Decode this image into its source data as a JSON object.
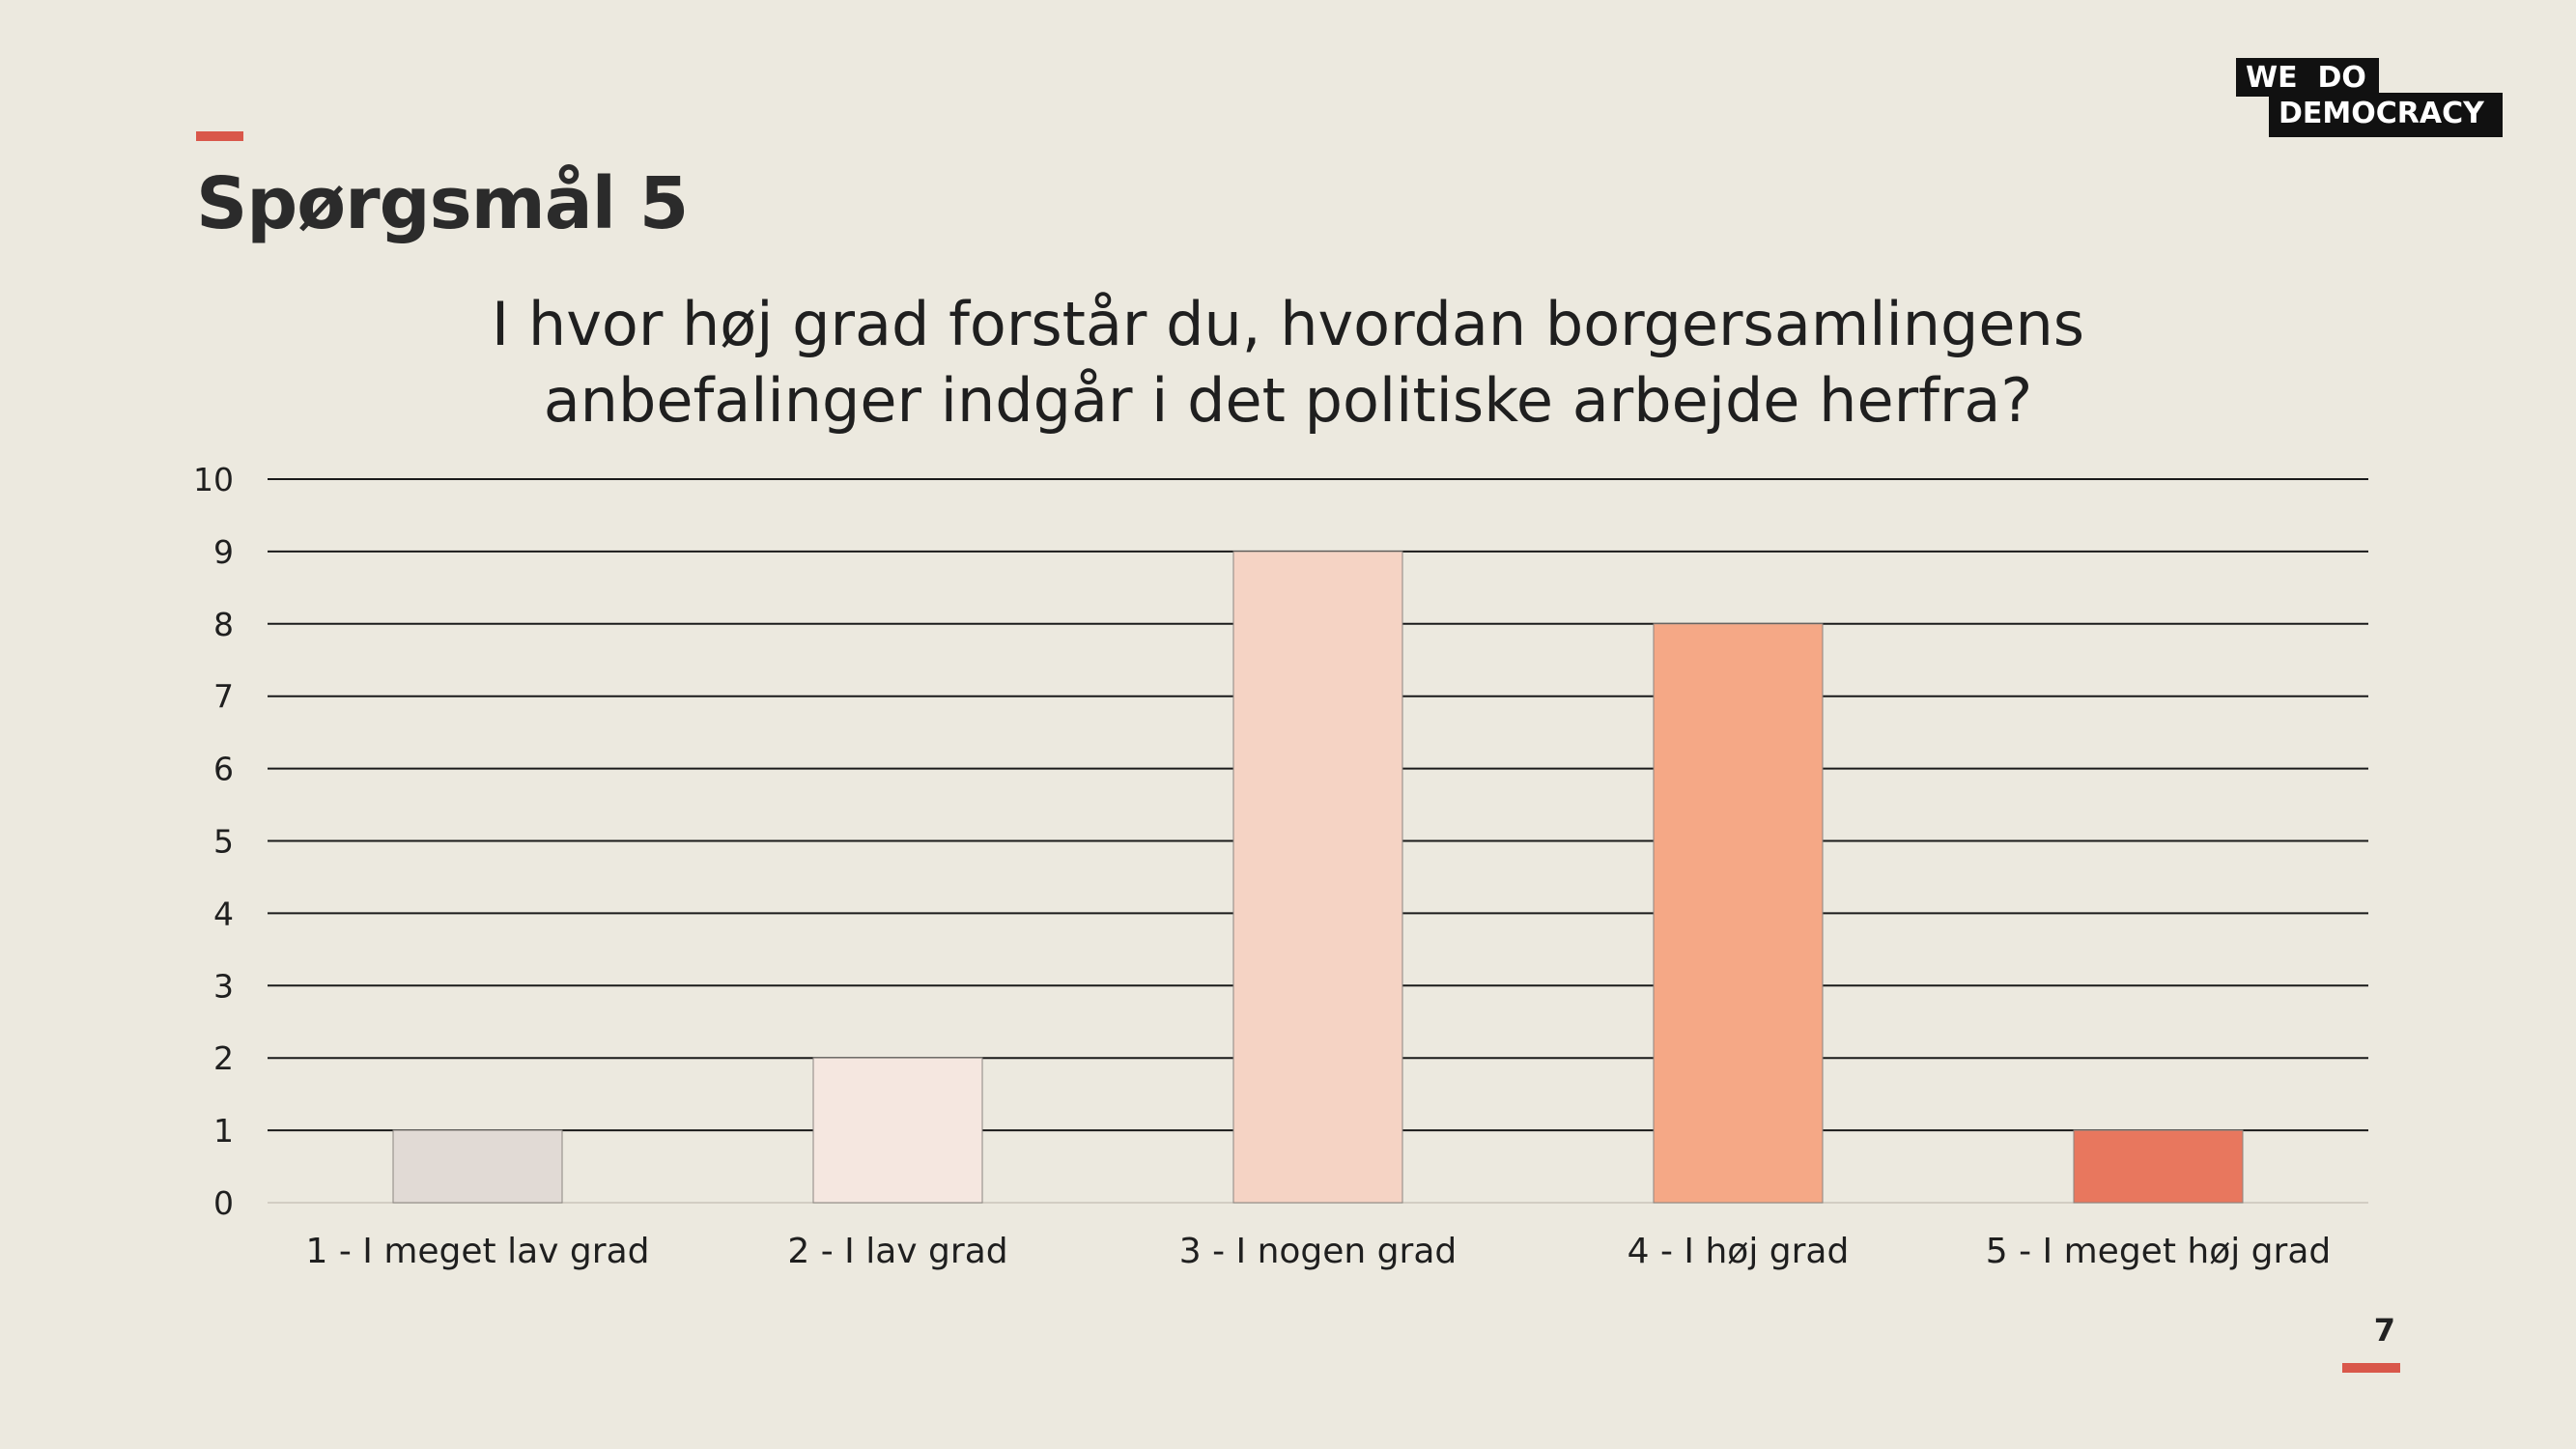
{
  "slide": {
    "heading": "Spørgsmål 5",
    "question_lines": [
      "I hvor høj grad forstår du, hvordan borgersamlingens",
      "anbefalinger indgår i det politiske arbejde herfra?"
    ],
    "page_number": "7",
    "accent_color": "#D9574A",
    "background_color": "#ECE9DF"
  },
  "logo": {
    "line1": "WE  DO",
    "line2": "DEMOCRACY"
  },
  "chart_data": {
    "type": "bar",
    "title": "I hvor høj grad forstår du, hvordan borgersamlingens anbefalinger indgår i det politiske arbejde herfra?",
    "categories": [
      "1 - I meget lav grad",
      "2 - I lav grad",
      "3 - I nogen grad",
      "4 - I høj grad",
      "5 - I meget høj grad"
    ],
    "values": [
      1,
      2,
      9,
      8,
      1
    ],
    "colors": [
      "#E1DAD5",
      "#F5E7E0",
      "#F5D3C4",
      "#F5A886",
      "#E8775E"
    ],
    "ylim": [
      0,
      10
    ],
    "yticks": [
      "0",
      "1",
      "2",
      "3",
      "4",
      "5",
      "6",
      "7",
      "8",
      "9",
      "10"
    ],
    "xlabel": "",
    "ylabel": "",
    "grid": true,
    "legend": "none"
  }
}
